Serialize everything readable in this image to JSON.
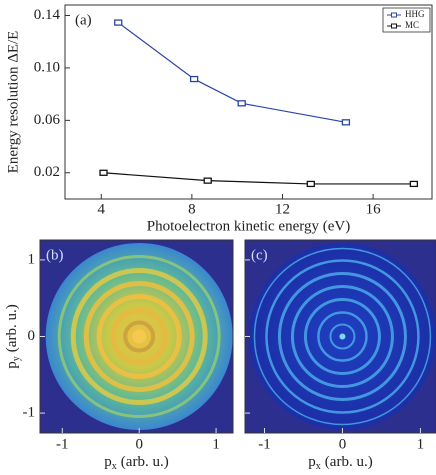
{
  "chart_data": [
    {
      "type": "line",
      "label": "(a)",
      "xlabel": "Photoelectron kinetic energy (eV)",
      "ylabel": "Energy resolution ΔE/E",
      "xlim": [
        2.4,
        18.6
      ],
      "xticks": [
        4,
        8,
        12,
        16
      ],
      "ylim": [
        0,
        0.148
      ],
      "yticks": [
        {
          "value": 0.02,
          "label": "0.02"
        },
        {
          "value": 0.06,
          "label": "0.06"
        },
        {
          "value": 0.1,
          "label": "0.10"
        },
        {
          "value": 0.14,
          "label": "0.14"
        }
      ],
      "legend": "upper right",
      "series": [
        {
          "name": "HHG",
          "color": "#2a45a8",
          "x": [
            4.75,
            8.1,
            10.2,
            14.8
          ],
          "values": [
            0.1346,
            0.0915,
            0.073,
            0.0585
          ]
        },
        {
          "name": "MC",
          "color": "#111111",
          "x": [
            4.1,
            8.7,
            13.25,
            17.8
          ],
          "values": [
            0.02,
            0.014,
            0.0115,
            0.0115
          ]
        }
      ]
    },
    {
      "type": "image",
      "style": "broad",
      "label": "(b)",
      "xlabel": {
        "symbol": "p",
        "subscript": "x",
        "unit": "(arb. u.)"
      },
      "ylabel": {
        "symbol": "p",
        "subscript": "y",
        "unit": "(arb. u.)"
      },
      "xlim": [
        -1.29,
        1.22
      ],
      "xticks": [
        -1,
        0,
        1
      ],
      "ylim": [
        -1.26,
        1.26
      ],
      "yticks": [
        -1,
        0,
        1
      ]
    },
    {
      "type": "image",
      "style": "sharp",
      "label": "(c)",
      "xlabel": {
        "symbol": "p",
        "subscript": "x",
        "unit": "(arb. u.)"
      },
      "xlim": [
        -1.25,
        1.2
      ],
      "xticks": [
        -1,
        0,
        1
      ],
      "ylim": [
        -1.26,
        1.26
      ],
      "yticks": [
        -1,
        0,
        1
      ]
    }
  ]
}
